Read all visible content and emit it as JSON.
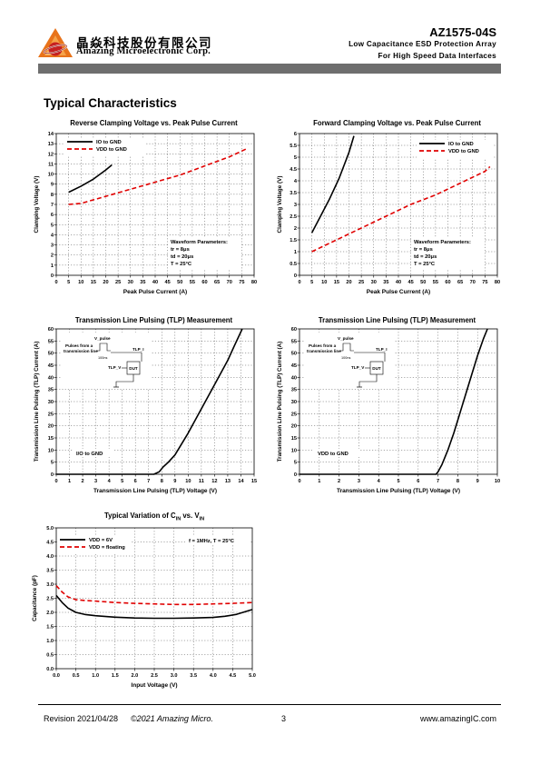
{
  "header": {
    "company_cn": "晶焱科技股份有限公司",
    "company_en": "Amazing Microelectronic Corp.",
    "part_number": "AZ1575-04S",
    "subtitle_1": "Low Capacitance ESD Protection Array",
    "subtitle_2": "For High Speed Data Interfaces"
  },
  "section_title": "Typical Characteristics",
  "colors": {
    "series_black": "#000000",
    "series_red": "#e00000",
    "header_bar": "#6e6e6e"
  },
  "charts": [
    {
      "title": "Reverse Clamping Voltage vs. Peak Pulse Current",
      "xlabel": "Peak Pulse Current (A)",
      "ylabel": "Clamping Voltage (V)",
      "params": [
        "Waveform Parameters:",
        "tr = 8μs",
        "td = 20μs",
        "T = 25°C"
      ]
    },
    {
      "title": "Forward Clamping Voltage vs. Peak Pulse Current",
      "xlabel": "Peak Pulse Current (A)",
      "ylabel": "Clamping Voltage (V)",
      "params": [
        "Waveform Parameters:",
        "tr = 8μs",
        "td = 20μs",
        "T = 25°C"
      ]
    },
    {
      "title": "Transmission Line Pulsing (TLP) Measurement",
      "xlabel": "Transmission Line Pulsing (TLP) Voltage (V)",
      "ylabel": "Transmission Line Pulsing (TLP) Current (A)",
      "inset": {
        "pulse_label": "Pulses from a transmission line",
        "v_pulse": "V_pulse",
        "i_label": "TLP_I",
        "v_label": "TLP_V",
        "dut": "DUT",
        "duration": "100ns"
      }
    },
    {
      "title": "Transmission Line Pulsing (TLP) Measurement",
      "xlabel": "Transmission Line Pulsing (TLP) Voltage (V)",
      "ylabel": "Transmission Line Pulsing (TLP) Current (A)",
      "inset": {
        "pulse_label": "Pulses from a transmission line",
        "v_pulse": "V_pulse",
        "i_label": "TLP_I",
        "v_label": "TLP_V",
        "dut": "DUT",
        "duration": "100ns"
      }
    },
    {
      "title_main": "Typical Variation of C",
      "title_sub1": "IN",
      "title_mid": " vs. V",
      "title_sub2": "IN",
      "xlabel": "Input Voltage (V)",
      "ylabel": "Capacitance (pF)",
      "note": "f = 1MHz, T = 25°C"
    }
  ],
  "chart_data": [
    {
      "type": "line",
      "x_ticks": [
        0,
        5,
        10,
        15,
        20,
        25,
        30,
        35,
        40,
        45,
        50,
        55,
        60,
        65,
        70,
        75,
        80
      ],
      "y_ticks": [
        0,
        1,
        2,
        3,
        4,
        5,
        6,
        7,
        8,
        9,
        10,
        11,
        12,
        13,
        14
      ],
      "xlim": [
        0,
        80
      ],
      "ylim": [
        0,
        14
      ],
      "grid": true,
      "legend": "top-left",
      "series": [
        {
          "name": "IO to GND",
          "color": "#000000",
          "dash": false,
          "x": [
            5,
            10,
            15,
            20,
            22.5
          ],
          "y": [
            8.2,
            8.8,
            9.5,
            10.4,
            10.9
          ]
        },
        {
          "name": "VDD to GND",
          "color": "#e00000",
          "dash": true,
          "x": [
            5,
            10,
            20,
            30,
            40,
            50,
            60,
            70,
            77
          ],
          "y": [
            7.0,
            7.1,
            7.8,
            8.5,
            9.2,
            9.9,
            10.8,
            11.7,
            12.5
          ]
        }
      ]
    },
    {
      "type": "line",
      "x_ticks": [
        0,
        5,
        10,
        15,
        20,
        25,
        30,
        35,
        40,
        45,
        50,
        55,
        60,
        65,
        70,
        75,
        80
      ],
      "y_ticks": [
        0.0,
        0.5,
        1.0,
        1.5,
        2.0,
        2.5,
        3.0,
        3.5,
        4.0,
        4.5,
        5.0,
        5.5,
        6.0
      ],
      "xlim": [
        0,
        80
      ],
      "ylim": [
        0,
        6
      ],
      "grid": true,
      "legend": "top-right",
      "series": [
        {
          "name": "IO to GND",
          "color": "#000000",
          "dash": false,
          "x": [
            5,
            8,
            12,
            16,
            20,
            22
          ],
          "y": [
            1.8,
            2.4,
            3.2,
            4.1,
            5.2,
            5.9
          ]
        },
        {
          "name": "VDD to GND",
          "color": "#e00000",
          "dash": true,
          "x": [
            5,
            15,
            25,
            35,
            45,
            55,
            65,
            75,
            77
          ],
          "y": [
            1.0,
            1.5,
            2.0,
            2.5,
            3.0,
            3.4,
            3.9,
            4.4,
            4.6
          ]
        }
      ]
    },
    {
      "type": "line",
      "x_ticks": [
        0,
        1,
        2,
        3,
        4,
        5,
        6,
        7,
        8,
        9,
        10,
        11,
        12,
        13,
        14,
        15
      ],
      "y_ticks": [
        0,
        5,
        10,
        15,
        20,
        25,
        30,
        35,
        40,
        45,
        50,
        55,
        60
      ],
      "xlim": [
        0,
        15
      ],
      "ylim": [
        0,
        60
      ],
      "grid": true,
      "series": [
        {
          "name": "I/O to GND",
          "color": "#000000",
          "dash": false,
          "x": [
            0,
            7.4,
            7.8,
            8.1,
            8.5,
            9,
            10,
            11,
            12,
            13,
            13.5,
            14.1
          ],
          "y": [
            0,
            0,
            1,
            3,
            5,
            8,
            17,
            27,
            37,
            47,
            53,
            60
          ]
        }
      ]
    },
    {
      "type": "line",
      "x_ticks": [
        0,
        1,
        2,
        3,
        4,
        5,
        6,
        7,
        8,
        9,
        10
      ],
      "y_ticks": [
        0,
        5,
        10,
        15,
        20,
        25,
        30,
        35,
        40,
        45,
        50,
        55,
        60
      ],
      "xlim": [
        0,
        10
      ],
      "ylim": [
        0,
        60
      ],
      "grid": true,
      "series": [
        {
          "name": "VDD to GND",
          "color": "#000000",
          "dash": false,
          "x": [
            0,
            6.9,
            7.0,
            7.2,
            7.5,
            7.8,
            8.1,
            8.4,
            8.7,
            9.0,
            9.3,
            9.5
          ],
          "y": [
            0,
            0,
            1,
            4,
            10,
            17,
            25,
            33,
            41,
            49,
            56,
            60
          ]
        }
      ]
    },
    {
      "type": "line",
      "x_ticks": [
        "0.0",
        "0.5",
        "1.0",
        "1.5",
        "2.0",
        "2.5",
        "3.0",
        "3.5",
        "4.0",
        "4.5",
        "5.0"
      ],
      "y_ticks": [
        "0.0",
        "0.5",
        "1.0",
        "1.5",
        "2.0",
        "2.5",
        "3.0",
        "3.5",
        "4.0",
        "4.5",
        "5.0"
      ],
      "xlim": [
        0,
        5
      ],
      "ylim": [
        0,
        5
      ],
      "grid": true,
      "legend": "top-left",
      "series": [
        {
          "name": "VDD = 6V",
          "color": "#000000",
          "dash": false,
          "x": [
            0,
            0.15,
            0.3,
            0.5,
            0.75,
            1.0,
            1.5,
            2.0,
            2.5,
            3.0,
            3.5,
            4.0,
            4.3,
            4.6,
            5.0
          ],
          "y": [
            2.6,
            2.35,
            2.15,
            2.0,
            1.92,
            1.88,
            1.83,
            1.8,
            1.79,
            1.79,
            1.8,
            1.82,
            1.86,
            1.93,
            2.1
          ]
        },
        {
          "name": "VDD = floating",
          "color": "#e00000",
          "dash": true,
          "x": [
            0,
            0.15,
            0.3,
            0.5,
            0.75,
            1.0,
            1.5,
            2.0,
            2.5,
            3.0,
            3.5,
            4.0,
            4.5,
            5.0
          ],
          "y": [
            2.95,
            2.72,
            2.55,
            2.45,
            2.42,
            2.4,
            2.35,
            2.32,
            2.3,
            2.28,
            2.28,
            2.3,
            2.32,
            2.35
          ]
        }
      ]
    }
  ],
  "footer": {
    "revision": "Revision 2021/04/28",
    "copyright": "©2021 Amazing Micro.",
    "page": "3",
    "website": "www.amazingIC.com"
  }
}
